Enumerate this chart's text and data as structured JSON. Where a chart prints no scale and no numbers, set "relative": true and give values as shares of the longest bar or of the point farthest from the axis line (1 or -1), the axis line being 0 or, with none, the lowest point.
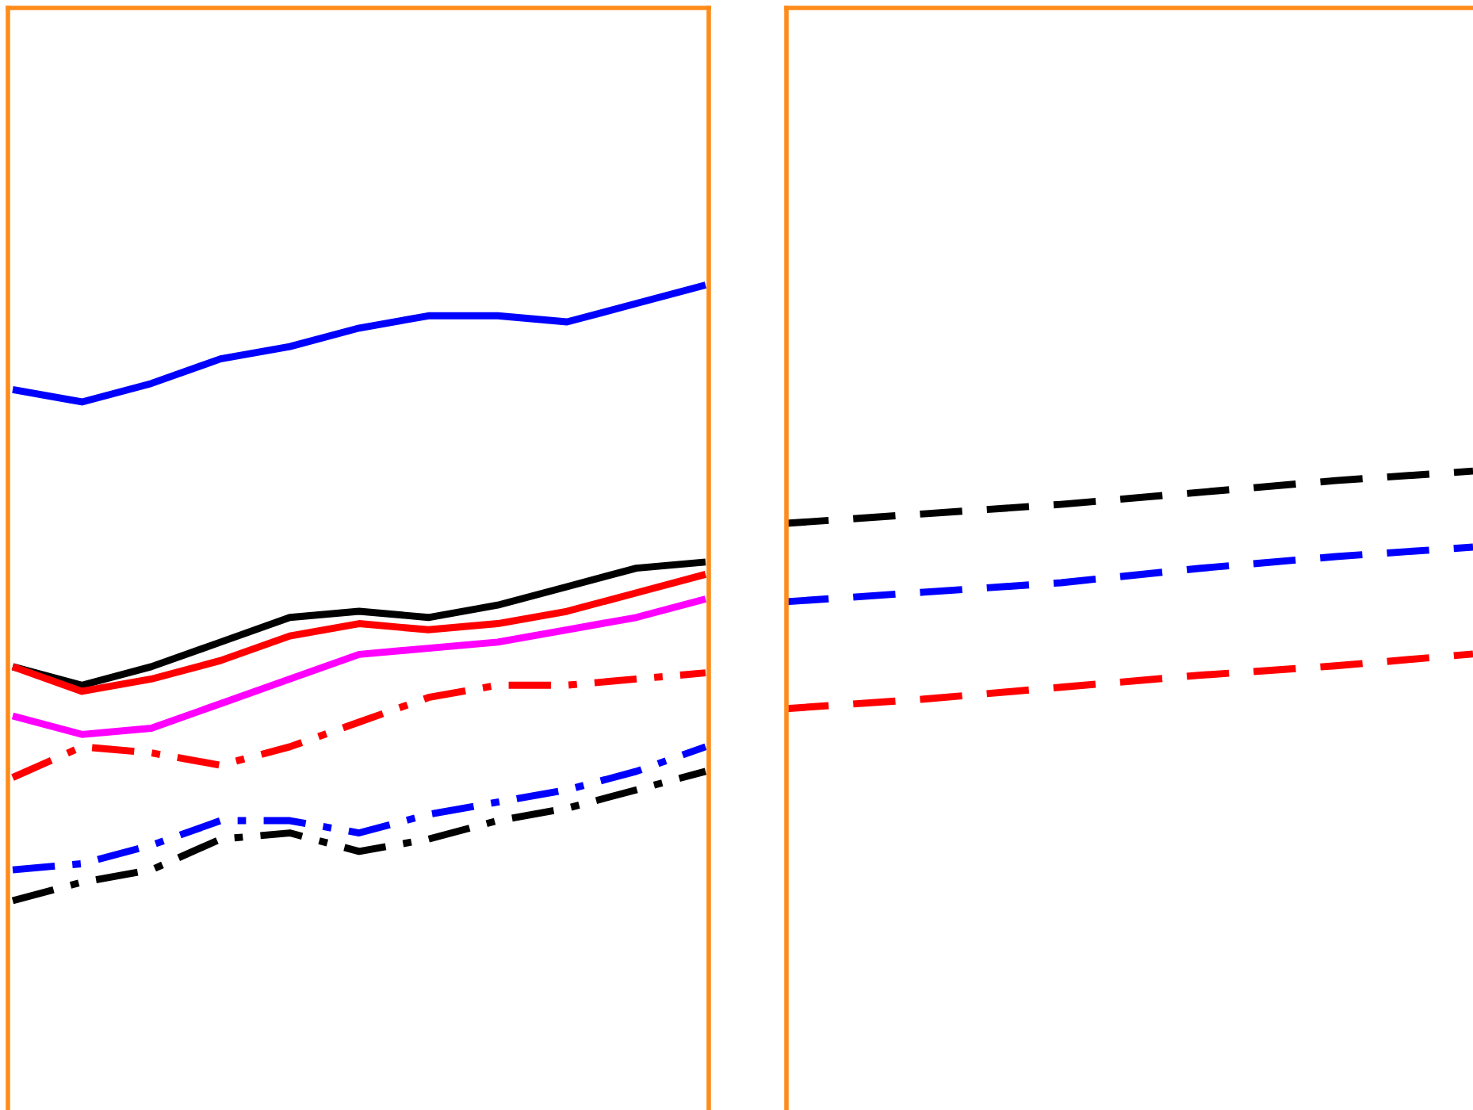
{
  "chart_data": [
    {
      "type": "line",
      "relative": true,
      "categories": [
        null,
        null,
        null,
        null,
        null,
        null,
        null,
        null,
        null,
        null,
        null
      ],
      "series": [
        {
          "color": "#0000ff",
          "line_style": "solid",
          "values": [
            0.83,
            0.81,
            0.84,
            0.88,
            0.9,
            0.93,
            0.95,
            0.95,
            0.94,
            0.97,
            1
          ]
        },
        {
          "color": "#000000",
          "line_style": "solid",
          "values": [
            0.38,
            0.35,
            0.38,
            0.42,
            0.46,
            0.47,
            0.46,
            0.48,
            0.51,
            0.54,
            0.55
          ]
        },
        {
          "color": "#ff0000",
          "line_style": "solid",
          "values": [
            0.38,
            0.34,
            0.36,
            0.39,
            0.43,
            0.45,
            0.44,
            0.45,
            0.47,
            0.5,
            0.53
          ]
        },
        {
          "color": "#ff00ff",
          "line_style": "solid",
          "values": [
            0.3,
            0.27,
            0.28,
            0.32,
            0.36,
            0.4,
            0.41,
            0.42,
            0.44,
            0.46,
            0.49
          ]
        },
        {
          "color": "#ff0000",
          "line_style": "dashdot",
          "values": [
            0.2,
            0.25,
            0.24,
            0.22,
            0.25,
            0.29,
            0.33,
            0.35,
            0.35,
            0.36,
            0.37
          ]
        },
        {
          "color": "#0000ff",
          "line_style": "dashdot",
          "values": [
            0.05,
            0.06,
            0.09,
            0.13,
            0.13,
            0.11,
            0.14,
            0.16,
            0.18,
            0.21,
            0.25
          ]
        },
        {
          "color": "#000000",
          "line_style": "dashdot",
          "values": [
            0,
            0.03,
            0.05,
            0.1,
            0.11,
            0.08,
            0.1,
            0.13,
            0.15,
            0.18,
            0.21
          ]
        }
      ]
    },
    {
      "type": "line",
      "relative": true,
      "categories": [
        null,
        null,
        null,
        null,
        null,
        null
      ],
      "series": [
        {
          "color": "#000000",
          "line_style": "dashed",
          "values": [
            0.78,
            0.82,
            0.86,
            0.91,
            0.96,
            1
          ]
        },
        {
          "color": "#0000ff",
          "line_style": "dashed",
          "values": [
            0.45,
            0.49,
            0.53,
            0.59,
            0.64,
            0.68
          ]
        },
        {
          "color": "#ff0000",
          "line_style": "dashed",
          "values": [
            0,
            0.04,
            0.09,
            0.14,
            0.18,
            0.23
          ]
        }
      ]
    }
  ]
}
